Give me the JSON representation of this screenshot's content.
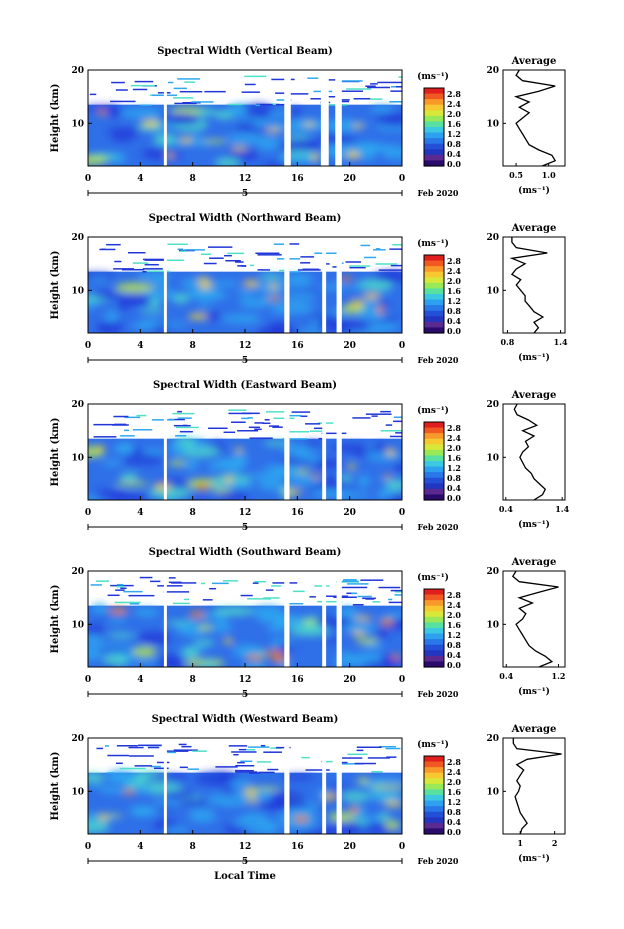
{
  "figure": {
    "x_axis_label": "Local Time",
    "date_label": "Feb 2020",
    "day_label": "5",
    "x_ticks": [
      "0",
      "4",
      "8",
      "12",
      "16",
      "20",
      "0"
    ],
    "y_ticks": [
      "20",
      "10"
    ],
    "y_axis_label": "Height (km)",
    "colorbar_unit": "(ms⁻¹)",
    "colorbar_ticks": [
      "2.8",
      "2.4",
      "2.0",
      "1.6",
      "1.2",
      "0.8",
      "0.4",
      "0.0"
    ],
    "avg_title": "Average",
    "avg_unit": "(ms⁻¹)"
  },
  "colors": {
    "colormap": [
      "#2a0a6a",
      "#2036d8",
      "#2fa8f0",
      "#4fe0c8",
      "#c8f03c",
      "#f8d030",
      "#f07a20",
      "#e01e1e"
    ]
  },
  "chart_data": [
    {
      "type": "heatmap",
      "title": "Spectral Width (Vertical Beam)",
      "xlabel": "Local Time",
      "ylabel": "Height (km)",
      "xlim": [
        0,
        24
      ],
      "ylim": [
        2,
        20
      ],
      "clim": [
        0.0,
        2.8
      ],
      "gaps_hours": [
        [
          5.8,
          6.0
        ],
        [
          15.0,
          15.5
        ],
        [
          17.8,
          18.4
        ],
        [
          18.9,
          19.4
        ]
      ],
      "average": {
        "xticks": [
          "0.5",
          "1.0"
        ],
        "xlim": [
          0.3,
          1.25
        ],
        "height": [
          2,
          3,
          4,
          5,
          6,
          7,
          8,
          9,
          10,
          11,
          12,
          13,
          14,
          15,
          16,
          17,
          18,
          19,
          20
        ],
        "width": [
          0.9,
          1.1,
          1.05,
          0.85,
          0.7,
          0.65,
          0.6,
          0.55,
          0.5,
          0.6,
          0.7,
          0.55,
          0.7,
          0.5,
          0.85,
          1.1,
          0.6,
          0.5,
          0.55
        ]
      }
    },
    {
      "type": "heatmap",
      "title": "Spectral Width (Northward Beam)",
      "xlabel": "Local Time",
      "ylabel": "Height (km)",
      "xlim": [
        0,
        24
      ],
      "ylim": [
        2,
        20
      ],
      "clim": [
        0.0,
        2.8
      ],
      "gaps_hours": [
        [
          5.8,
          6.0
        ],
        [
          15.0,
          15.4
        ],
        [
          17.9,
          18.2
        ],
        [
          19.0,
          19.4
        ]
      ],
      "average": {
        "xticks": [
          "0.8",
          "1.4"
        ],
        "xlim": [
          0.75,
          1.45
        ],
        "height": [
          2,
          3,
          4,
          5,
          6,
          7,
          8,
          9,
          10,
          11,
          12,
          13,
          14,
          15,
          16,
          17,
          18,
          19,
          20
        ],
        "width": [
          1.1,
          1.15,
          1.1,
          1.2,
          1.1,
          1.05,
          1.0,
          1.0,
          0.95,
          0.9,
          0.95,
          0.85,
          0.9,
          1.0,
          0.85,
          1.25,
          0.9,
          0.85,
          0.85
        ]
      }
    },
    {
      "type": "heatmap",
      "title": "Spectral Width (Eastward Beam)",
      "xlabel": "Local Time",
      "ylabel": "Height (km)",
      "xlim": [
        0,
        24
      ],
      "ylim": [
        2,
        20
      ],
      "clim": [
        0.0,
        2.8
      ],
      "gaps_hours": [
        [
          5.8,
          6.0
        ],
        [
          15.0,
          15.4
        ],
        [
          17.9,
          18.2
        ],
        [
          19.0,
          19.4
        ]
      ],
      "average": {
        "xticks": [
          "0.4",
          "1.4"
        ],
        "xlim": [
          0.35,
          1.45
        ],
        "height": [
          2,
          3,
          4,
          5,
          6,
          7,
          8,
          9,
          10,
          11,
          12,
          13,
          14,
          15,
          16,
          17,
          18,
          19,
          20
        ],
        "width": [
          0.9,
          1.05,
          1.1,
          1.0,
          0.9,
          0.85,
          0.75,
          0.7,
          0.65,
          0.7,
          0.8,
          0.75,
          0.9,
          0.7,
          0.95,
          0.8,
          0.6,
          0.55,
          0.6
        ]
      }
    },
    {
      "type": "heatmap",
      "title": "Spectral Width (Southward Beam)",
      "xlabel": "Local Time",
      "ylabel": "Height (km)",
      "xlim": [
        0,
        24
      ],
      "ylim": [
        2,
        20
      ],
      "clim": [
        0.0,
        2.8
      ],
      "gaps_hours": [
        [
          5.8,
          6.0
        ],
        [
          15.0,
          15.4
        ],
        [
          17.9,
          18.2
        ],
        [
          19.0,
          19.4
        ]
      ],
      "average": {
        "xticks": [
          "0.4",
          "1.2"
        ],
        "xlim": [
          0.35,
          1.3
        ],
        "height": [
          2,
          3,
          4,
          5,
          6,
          7,
          8,
          9,
          10,
          11,
          12,
          13,
          14,
          15,
          16,
          17,
          18,
          19,
          20
        ],
        "width": [
          0.9,
          1.1,
          1.0,
          0.85,
          0.75,
          0.7,
          0.65,
          0.6,
          0.55,
          0.65,
          0.7,
          0.6,
          0.8,
          0.6,
          0.9,
          1.2,
          0.6,
          0.5,
          0.55
        ]
      }
    },
    {
      "type": "heatmap",
      "title": "Spectral Width (Westward Beam)",
      "xlabel": "Local Time",
      "ylabel": "Height (km)",
      "xlim": [
        0,
        24
      ],
      "ylim": [
        2,
        20
      ],
      "clim": [
        0.0,
        2.8
      ],
      "gaps_hours": [
        [
          5.8,
          6.0
        ],
        [
          15.0,
          15.4
        ],
        [
          17.9,
          18.2
        ],
        [
          19.0,
          19.4
        ]
      ],
      "average": {
        "xticks": [
          "1",
          "2"
        ],
        "xlim": [
          0.5,
          2.3
        ],
        "height": [
          2,
          3,
          4,
          5,
          6,
          7,
          8,
          9,
          10,
          11,
          12,
          13,
          14,
          15,
          16,
          17,
          18,
          19,
          20
        ],
        "width": [
          1.0,
          1.05,
          1.2,
          1.1,
          1.0,
          0.95,
          0.9,
          0.85,
          0.95,
          1.0,
          0.9,
          1.0,
          1.1,
          0.9,
          1.2,
          2.2,
          0.9,
          0.8,
          0.8
        ]
      }
    }
  ]
}
